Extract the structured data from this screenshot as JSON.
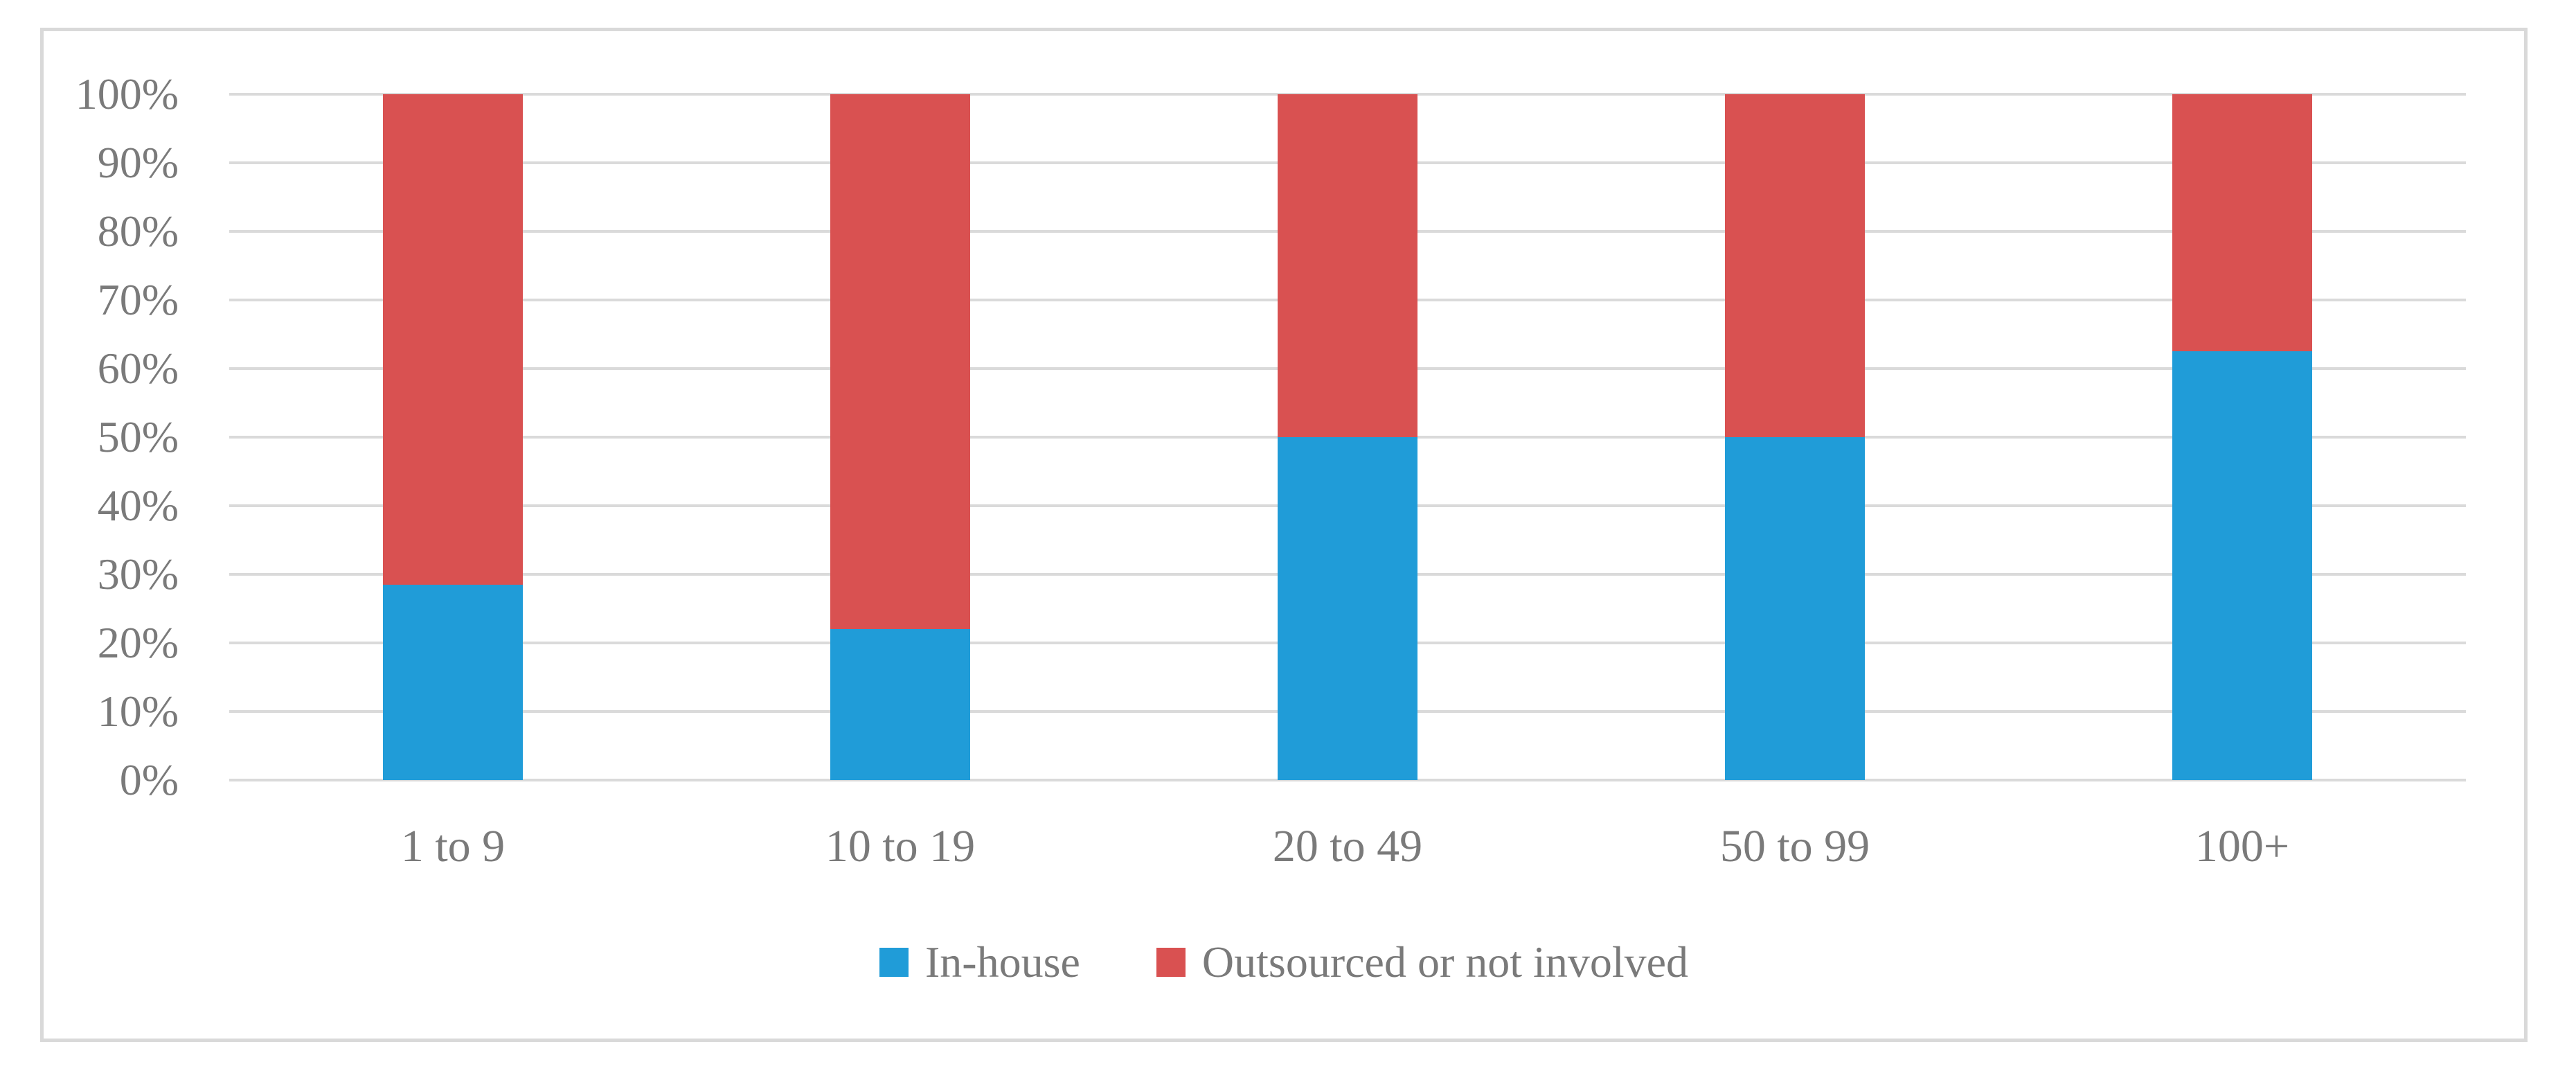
{
  "figure": {
    "title": "",
    "background": "#FFFFFF",
    "kind": "100% stacked column chart"
  },
  "chart_data": {
    "type": "bar",
    "subtype": "stacked-100",
    "title": "",
    "xlabel": "",
    "ylabel": "",
    "ylim": [
      0,
      100
    ],
    "grid": true,
    "legend_position": "bottom",
    "categories": [
      "1 to 9",
      "10 to 19",
      "20 to 49",
      "50 to 99",
      "100+"
    ],
    "series": [
      {
        "name": "In-house",
        "color": "#209CD8",
        "values": [
          28.5,
          22,
          50,
          50,
          62.5
        ]
      },
      {
        "name": "Outsourced or not involved",
        "color": "#D95151",
        "values": [
          71.5,
          78,
          50,
          50,
          37.5
        ]
      }
    ],
    "y_ticks": [
      "0%",
      "10%",
      "20%",
      "30%",
      "40%",
      "50%",
      "60%",
      "70%",
      "80%",
      "90%",
      "100%"
    ]
  },
  "colors": {
    "gridline": "#DADADA",
    "border": "#D9D9D9",
    "text": "#7A7A7A",
    "in_house": "#209CD8",
    "outsourced": "#D95151"
  }
}
